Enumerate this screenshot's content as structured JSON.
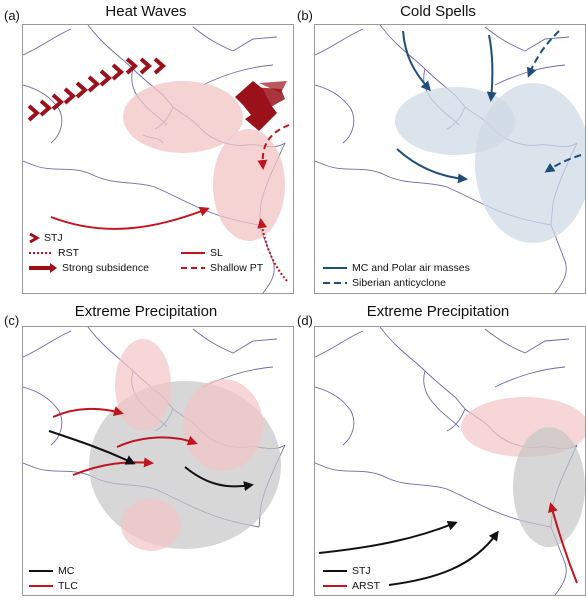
{
  "panels": [
    {
      "label": "(a)",
      "title": "Heat Waves",
      "legend": [
        "STJ",
        "RST",
        "Strong subsidence",
        "SL",
        "Shallow PT"
      ]
    },
    {
      "label": "(b)",
      "title": "Cold Spells",
      "legend": [
        "MC and Polar air masses",
        "Siberian anticyclone"
      ]
    },
    {
      "label": "(c)",
      "title": "Extreme Precipitation",
      "legend": [
        "MC",
        "TLC"
      ]
    },
    {
      "label": "(d)",
      "title": "Extreme Precipitation",
      "legend": [
        "STJ",
        "ARST"
      ]
    }
  ],
  "colors": {
    "red": "#c0141e",
    "darkred": "#9b111a",
    "blue": "#1f4e79",
    "black": "#111111",
    "coast": "#6d6aa8",
    "pink_fill": "#f2c4c4",
    "blue_fill": "#cfd9e6",
    "gray_fill": "#c6c6c6"
  }
}
